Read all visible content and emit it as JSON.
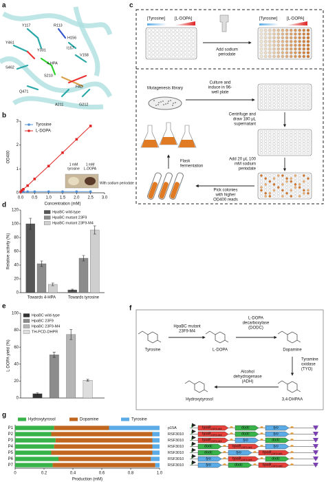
{
  "panel_letters": [
    "a",
    "b",
    "c",
    "d",
    "e",
    "f",
    "g"
  ],
  "panel_a": {
    "labels": [
      "Y117",
      "R113",
      "H156",
      "Y461",
      "I157",
      "V158",
      "Y301",
      "S462",
      "4-HPA",
      "S210",
      "FAD",
      "Q471",
      "A211",
      "G212"
    ]
  },
  "chart_data": [
    {
      "type": "line",
      "xlabel": "Concentration (mM)",
      "ylabel": "OD400",
      "x": [
        0,
        0.05,
        0.1,
        0.25,
        0.5,
        1,
        1.5,
        2,
        2.5
      ],
      "xlim": [
        0,
        3
      ],
      "ylim": [
        0,
        3
      ],
      "xticks": [
        {
          "value": 0,
          "label": "0.0"
        },
        0.5,
        {
          "value": 1,
          "label": "1.0"
        },
        1.5,
        {
          "value": 2,
          "label": "2.0"
        },
        2.5,
        {
          "value": 3,
          "label": "3.0"
        }
      ],
      "yticks": [
        0,
        1,
        2,
        3
      ],
      "legend": "upper left",
      "series": [
        {
          "name": "Tyrosine",
          "color": "#4f8fd6",
          "marker": "circle",
          "values": [
            0.04,
            0.04,
            0.04,
            0.05,
            0.05,
            0.05,
            0.05,
            0.05,
            0.05
          ]
        },
        {
          "name": "L-DOPA",
          "color": "#e02424",
          "marker": "square",
          "values": [
            0.04,
            0.1,
            0.15,
            0.3,
            0.58,
            1.12,
            1.68,
            2.24,
            2.8
          ]
        }
      ],
      "inset": {
        "tube1": [
          "1 mM",
          "tyrosine"
        ],
        "tube2": [
          "1 mM",
          "L-DOPA"
        ],
        "note": "With sodium periodate"
      }
    },
    {
      "type": "bar",
      "ylabel": "Relative activity (%)",
      "categories": [
        "Towards 4-HPA",
        "Towards tyrosine"
      ],
      "ylim": [
        0,
        120
      ],
      "yticks": [
        0,
        20,
        40,
        60,
        80,
        100,
        120
      ],
      "legend": "upper right",
      "series": [
        {
          "name": "HpaBC wild-type",
          "color": "#555555",
          "values": [
            100,
            4
          ],
          "errors": [
            8,
            1
          ]
        },
        {
          "name": "HpaBC mutant 23F9",
          "color": "#8c8c8c",
          "values": [
            42,
            50
          ],
          "errors": [
            4,
            4
          ]
        },
        {
          "name": "HpaBC mutant 23F9-M4",
          "color": "#cfcfcf",
          "values": [
            12,
            91
          ],
          "errors": [
            2,
            6
          ]
        }
      ]
    },
    {
      "type": "bar",
      "ylabel": "L-DOPA yield (%)",
      "categories": [
        null
      ],
      "ylim": [
        0,
        100
      ],
      "yticks": [
        0,
        20,
        40,
        60,
        80,
        100
      ],
      "legend": "upper left",
      "series": [
        {
          "name": "HpaBC wild-type",
          "color": "#333333",
          "values": [
            5
          ],
          "errors": [
            1
          ]
        },
        {
          "name": "HpaBC 23F9",
          "color": "#8c8c8c",
          "values": [
            51
          ],
          "errors": [
            3
          ]
        },
        {
          "name": "HpaBC 23F9-M4",
          "color": "#b5b5b5",
          "values": [
            75
          ],
          "errors": [
            6
          ]
        },
        {
          "name": "TH-PCD-DHPR",
          "color": "#dedede",
          "values": [
            21
          ],
          "errors": [
            1
          ]
        }
      ]
    },
    {
      "type": "stacked_barh",
      "xlabel": "Production (mM)",
      "categories": [
        "P1",
        "P2",
        "P3",
        "P4",
        "P5",
        "P6",
        "P7"
      ],
      "xlim": [
        0,
        1
      ],
      "xticks": [
        0,
        0.2,
        0.4,
        0.6,
        0.8,
        {
          "value": 1,
          "label": "1.0"
        }
      ],
      "legend": "top",
      "series": [
        {
          "name": "Hydroxytyrosol",
          "color": "#37b34a",
          "values": [
            0.27,
            0.25,
            0.28,
            0.27,
            0.25,
            0.3,
            0.26
          ]
        },
        {
          "name": "Dopamine",
          "color": "#c0661e",
          "values": [
            0.38,
            0.7,
            0.67,
            0.68,
            0.7,
            0.64,
            0.71
          ]
        },
        {
          "name": "Tyrosine",
          "color": "#5aabe6",
          "values": [
            0.35,
            0.05,
            0.05,
            0.05,
            0.05,
            0.06,
            0.03
          ]
        }
      ]
    }
  ],
  "panel_c": {
    "tyrosine": "[Tyrosine]",
    "ldopa": "[L-DOPA]",
    "add_periodate": [
      "Add sodium",
      "periodate"
    ],
    "library": "Mutagenesis library",
    "culture": [
      "Culture and",
      "induce in 96-",
      "well plate"
    ],
    "centrifuge": [
      "Centrifuge and",
      "draw 180 μL",
      "supernatant"
    ],
    "add20": [
      "Add 20 μL 100",
      "mM sodium",
      "periodate"
    ],
    "pick": [
      "Pick colonies",
      "with higher",
      "OD400 reads"
    ],
    "flask": [
      "Flask",
      "fermentation"
    ]
  },
  "panel_f": {
    "enzyme1": [
      "HpaBC mutant",
      "23F9-M4"
    ],
    "enzyme2": [
      "L-DOPA",
      "decarboxylase",
      "(DODC)"
    ],
    "enzyme3": [
      "Tyramine",
      "oxidase",
      "(TYO)"
    ],
    "enzyme4": [
      "Alcohol",
      "dehydrogenase",
      "(ADH)"
    ],
    "compounds": [
      "Tyrosine",
      "L-DOPA",
      "Dopamine",
      "3,4-DHPAA",
      "Hydroxytyrosol"
    ]
  },
  "panel_g_constructs": {
    "gene_colors": {
      "hpaB": "#e8403a",
      "dodc": "#37b34a",
      "tyo": "#5aabe6"
    },
    "rows": [
      {
        "plasmid": "p15A",
        "genes": [
          {
            "name": "hpaB",
            "sub": "23F9-M4"
          },
          {
            "name": "dodc"
          },
          {
            "name": "tyo"
          }
        ]
      },
      {
        "plasmid": "RSF3010",
        "genes": [
          {
            "name": "hpaB",
            "sub": "23F9-M4"
          },
          {
            "name": "dodc"
          },
          {
            "name": "tyo"
          }
        ]
      },
      {
        "plasmid": "RSF3010",
        "genes": [
          {
            "name": "hpaB",
            "sub": "23F9-M4"
          },
          {
            "name": "tyo"
          },
          {
            "name": "dodc"
          }
        ]
      },
      {
        "plasmid": "RSF3010",
        "genes": [
          {
            "name": "dodc"
          },
          {
            "name": "hpaB",
            "sub": "23F9-M4"
          },
          {
            "name": "tyo"
          }
        ]
      },
      {
        "plasmid": "RSF3010",
        "genes": [
          {
            "name": "dodc"
          },
          {
            "name": "tyo"
          },
          {
            "name": "hpaB",
            "sub": "23F9-M4"
          }
        ]
      },
      {
        "plasmid": "RSF3010",
        "genes": [
          {
            "name": "tyo"
          },
          {
            "name": "hpaB",
            "sub": "23F9-M4"
          },
          {
            "name": "dodc"
          }
        ]
      },
      {
        "plasmid": "RSF3010",
        "genes": [
          {
            "name": "tyo"
          },
          {
            "name": "dodc"
          },
          {
            "name": "hpaB",
            "sub": "23F9-M4"
          }
        ]
      }
    ]
  }
}
